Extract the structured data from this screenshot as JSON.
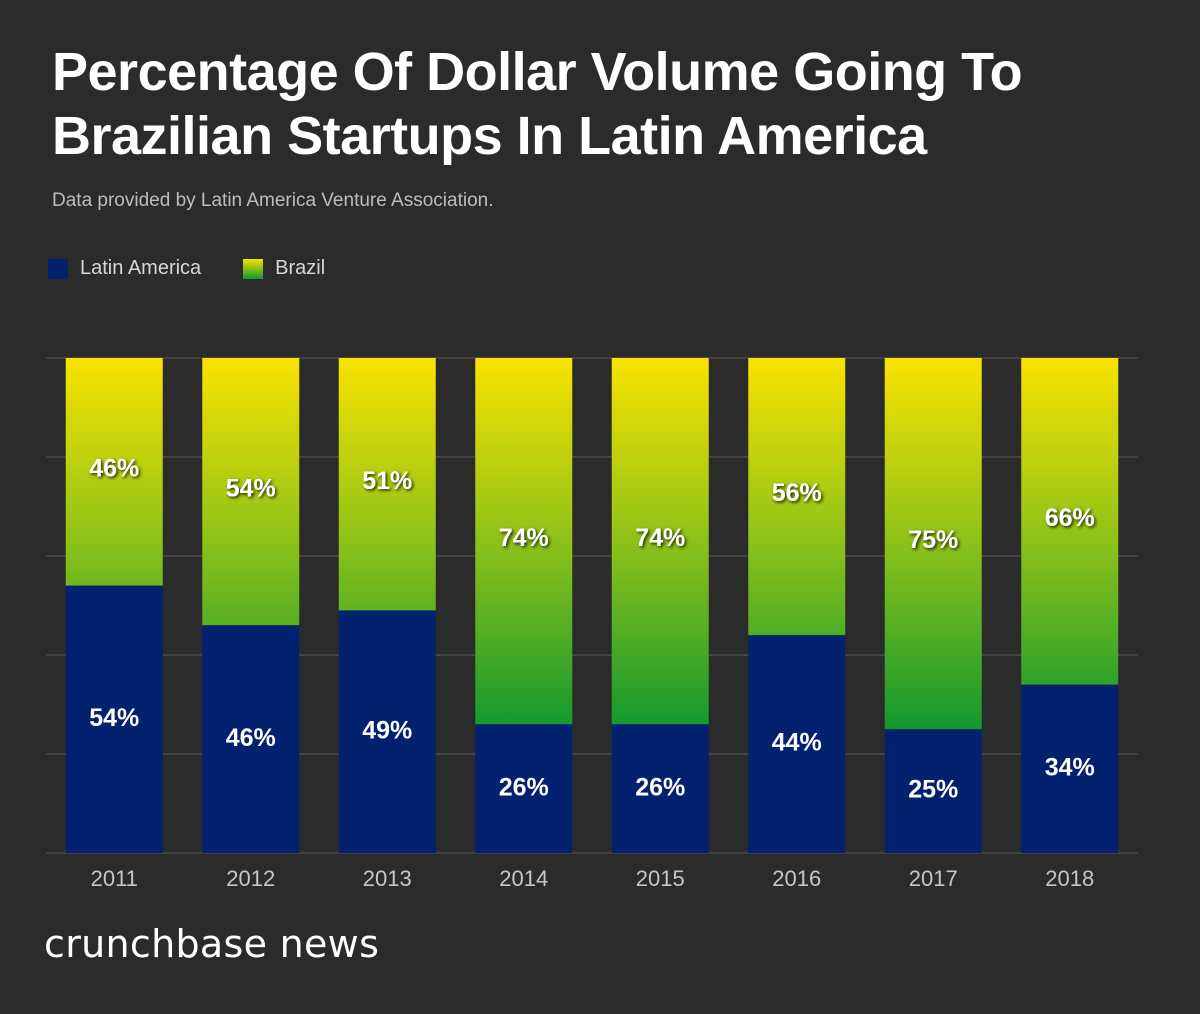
{
  "header": {
    "title_line1": "Percentage Of Dollar Volume Going To",
    "title_line2": "Brazilian Startups In Latin America",
    "subtitle": "Data provided by Latin America Venture Association."
  },
  "legend": {
    "latin_america": "Latin America",
    "brazil": "Brazil"
  },
  "colors": {
    "background": "#2b2b2b",
    "latin_america": "#02226f",
    "brazil_top": "#f9e300",
    "brazil_bottom": "#12982f",
    "gridline": "#5a5a5a"
  },
  "chart_data": {
    "type": "bar",
    "stacked": true,
    "normalized": true,
    "categories": [
      "2011",
      "2012",
      "2013",
      "2014",
      "2015",
      "2016",
      "2017",
      "2018"
    ],
    "series": [
      {
        "name": "Latin America",
        "values": [
          54,
          46,
          49,
          26,
          26,
          44,
          25,
          34
        ],
        "labels": [
          "54%",
          "46%",
          "49%",
          "26%",
          "26%",
          "44%",
          "25%",
          "34%"
        ]
      },
      {
        "name": "Brazil",
        "values": [
          46,
          54,
          51,
          74,
          74,
          56,
          75,
          66
        ],
        "labels": [
          "46%",
          "54%",
          "51%",
          "74%",
          "74%",
          "56%",
          "75%",
          "66%"
        ]
      }
    ],
    "title": "Percentage Of Dollar Volume Going To Brazilian Startups In Latin America",
    "xlabel": "",
    "ylabel": "",
    "ylim": [
      0,
      100
    ],
    "grid": true,
    "legend_position": "top-left"
  },
  "footer": {
    "brand": "crunchbase news"
  }
}
